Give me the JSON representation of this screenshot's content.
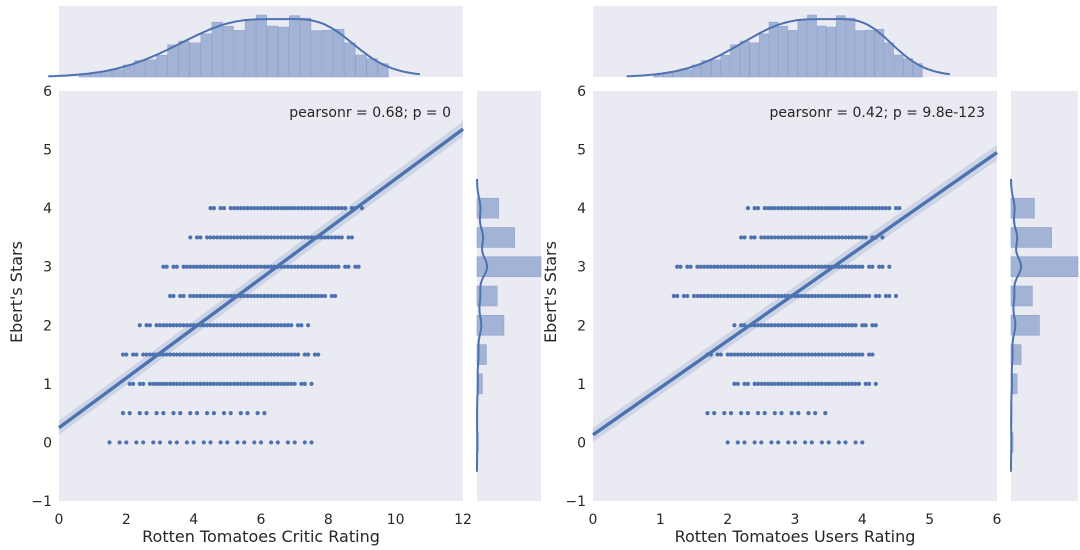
{
  "chart_data": [
    {
      "type": "scatter",
      "kind": "jointplot",
      "xlabel": "Rotten Tomatoes Critic Rating",
      "ylabel": "Ebert's Stars",
      "xlim": [
        0,
        12
      ],
      "ylim": [
        -1,
        6
      ],
      "xticks": [
        "0",
        "2",
        "4",
        "6",
        "8",
        "10",
        "12"
      ],
      "yticks": [
        "−1",
        "0",
        "1",
        "2",
        "3",
        "4",
        "5",
        "6"
      ],
      "annotation": "pearsonr = 0.68; p = 0",
      "regression": {
        "x": [
          0,
          12
        ],
        "y": [
          0.25,
          5.35
        ]
      },
      "y_ranges": [
        {
          "y": 0,
          "min": 1.5,
          "max": 7.6,
          "sparse": true
        },
        {
          "y": 0.5,
          "min": 1.7,
          "max": 6.2,
          "sparse": true
        },
        {
          "y": 1,
          "min": 2.1,
          "max": 7.5
        },
        {
          "y": 1.5,
          "min": 1.9,
          "max": 7.8
        },
        {
          "y": 2,
          "min": 2.4,
          "max": 7.4
        },
        {
          "y": 2.5,
          "min": 3.3,
          "max": 8.3
        },
        {
          "y": 3,
          "min": 3.1,
          "max": 8.9
        },
        {
          "y": 3.5,
          "min": 3.9,
          "max": 8.8
        },
        {
          "y": 4,
          "min": 4.5,
          "max": 9.0
        }
      ],
      "x_marginal_range": [
        0.6,
        9.8
      ],
      "y_marginal_bars": [
        {
          "y": 0,
          "count": 2
        },
        {
          "y": 0.5,
          "count": 1
        },
        {
          "y": 1,
          "count": 8
        },
        {
          "y": 1.5,
          "count": 14
        },
        {
          "y": 2,
          "count": 40
        },
        {
          "y": 2.5,
          "count": 30
        },
        {
          "y": 3,
          "count": 95
        },
        {
          "y": 3.5,
          "count": 56
        },
        {
          "y": 4,
          "count": 32
        }
      ],
      "colors": {
        "points": "#4c72b0",
        "line": "#4c72b0",
        "bars": "#a3b3d6",
        "panel": "#eaeaf2"
      }
    },
    {
      "type": "scatter",
      "kind": "jointplot",
      "xlabel": "Rotten Tomatoes Users Rating",
      "ylabel": "Ebert's Stars",
      "xlim": [
        0,
        6
      ],
      "ylim": [
        -1,
        6
      ],
      "xticks": [
        "0",
        "1",
        "2",
        "3",
        "4",
        "5",
        "6"
      ],
      "yticks": [
        "−1",
        "0",
        "1",
        "2",
        "3",
        "4",
        "5",
        "6"
      ],
      "annotation": "pearsonr = 0.42; p = 9.8e-123",
      "regression": {
        "x": [
          0,
          6
        ],
        "y": [
          0.13,
          4.95
        ]
      },
      "y_ranges": [
        {
          "y": 0,
          "min": 2.0,
          "max": 4.1,
          "sparse": true
        },
        {
          "y": 0.5,
          "min": 1.6,
          "max": 3.5,
          "sparse": true
        },
        {
          "y": 1,
          "min": 2.1,
          "max": 4.2
        },
        {
          "y": 1.5,
          "min": 1.7,
          "max": 4.2
        },
        {
          "y": 2,
          "min": 2.1,
          "max": 4.2
        },
        {
          "y": 2.5,
          "min": 1.2,
          "max": 4.5
        },
        {
          "y": 3,
          "min": 1.2,
          "max": 4.4
        },
        {
          "y": 3.5,
          "min": 2.2,
          "max": 4.3
        },
        {
          "y": 4,
          "min": 2.3,
          "max": 4.6
        }
      ],
      "x_marginal_range": [
        0.9,
        4.9
      ],
      "y_marginal_bars": [
        {
          "y": 0,
          "count": 2
        },
        {
          "y": 0.5,
          "count": 1
        },
        {
          "y": 1,
          "count": 6
        },
        {
          "y": 1.5,
          "count": 10
        },
        {
          "y": 2,
          "count": 28
        },
        {
          "y": 2.5,
          "count": 21
        },
        {
          "y": 3,
          "count": 66
        },
        {
          "y": 3.5,
          "count": 40
        },
        {
          "y": 4,
          "count": 23
        }
      ],
      "colors": {
        "points": "#4c72b0",
        "line": "#4c72b0",
        "bars": "#a3b3d6",
        "panel": "#eaeaf2"
      }
    }
  ]
}
